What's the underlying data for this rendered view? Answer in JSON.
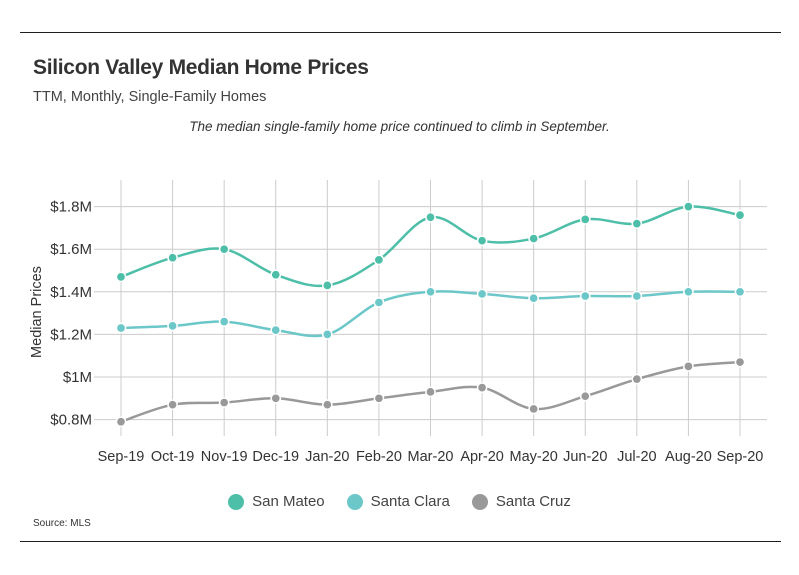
{
  "header": {
    "title": "Silicon Valley Median Home Prices",
    "subtitle": "TTM, Monthly, Single-Family Homes",
    "annotation": "The median single-family home price continued to climb in September."
  },
  "footer": {
    "source": "Source:  MLS"
  },
  "colors": {
    "San Mateo": "#4dbfa8",
    "Santa Clara": "#6cc7c9",
    "Santa Cruz": "#999999",
    "grid": "#cccccc"
  },
  "chart_data": {
    "type": "line",
    "ylabel": "Median Prices",
    "xlabel": "",
    "ylim": [
      0.74,
      1.84
    ],
    "yticks": [
      {
        "value": 0.8,
        "label": "$0.8M"
      },
      {
        "value": 1.0,
        "label": "$1M"
      },
      {
        "value": 1.2,
        "label": "$1.2M"
      },
      {
        "value": 1.4,
        "label": "$1.4M"
      },
      {
        "value": 1.6,
        "label": "$1.6M"
      },
      {
        "value": 1.8,
        "label": "$1.8M"
      }
    ],
    "grid": true,
    "legend": "bottom-center",
    "categories": [
      "Sep-19",
      "Oct-19",
      "Nov-19",
      "Dec-19",
      "Jan-20",
      "Feb-20",
      "Mar-20",
      "Apr-20",
      "May-20",
      "Jun-20",
      "Jul-20",
      "Aug-20",
      "Sep-20"
    ],
    "series": [
      {
        "name": "San Mateo",
        "values": [
          1.47,
          1.56,
          1.6,
          1.48,
          1.43,
          1.55,
          1.75,
          1.64,
          1.65,
          1.74,
          1.72,
          1.8,
          1.76
        ]
      },
      {
        "name": "Santa Clara",
        "values": [
          1.23,
          1.24,
          1.26,
          1.22,
          1.2,
          1.35,
          1.4,
          1.39,
          1.37,
          1.38,
          1.38,
          1.4,
          1.4
        ]
      },
      {
        "name": "Santa Cruz",
        "values": [
          0.79,
          0.87,
          0.88,
          0.9,
          0.87,
          0.9,
          0.93,
          0.95,
          0.85,
          0.91,
          0.99,
          1.05,
          1.07
        ]
      }
    ]
  }
}
